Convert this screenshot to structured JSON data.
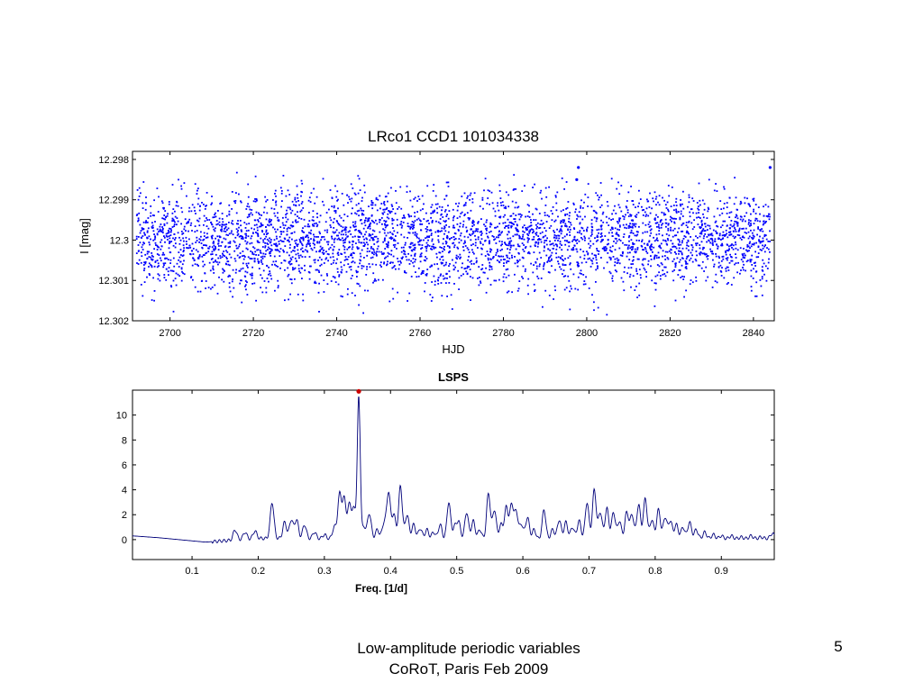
{
  "slide": {
    "footer_line1": "Low-amplitude periodic variables",
    "footer_line2": "CoRoT, Paris Feb 2009",
    "page_number": "5"
  },
  "chart_data": [
    {
      "type": "scatter",
      "title": "LRco1 CCD1  101034338",
      "xlabel": "HJD",
      "ylabel": "I [mag]",
      "xlim": [
        2691,
        2845
      ],
      "ylim": [
        12.302,
        12.2978
      ],
      "y_axis_inverted": true,
      "xticks": [
        2700,
        2720,
        2740,
        2760,
        2780,
        2800,
        2820,
        2840
      ],
      "yticks": [
        12.298,
        12.299,
        12.3,
        12.301,
        12.302
      ],
      "ytick_labels": [
        "12.298",
        "12.299",
        "12.3",
        "12.301",
        "12.302"
      ],
      "marker_color": "#0000ff",
      "series": [
        {
          "x_range": [
            2692,
            2844
          ],
          "approx_points": 4000,
          "mean_mag": 12.3,
          "typical_scatter_mag": 0.0011,
          "brightest_mag": 12.2982,
          "faintest_mag": 12.302,
          "notable": [
            {
              "x": 2798,
              "y": 12.2982
            },
            {
              "x": 2797.6,
              "y": 12.2985
            },
            {
              "x": 2844,
              "y": 12.2982
            }
          ]
        }
      ],
      "grid": false
    },
    {
      "type": "line",
      "title": "LSPS",
      "xlabel": "Freq. [1/d]",
      "ylabel": "",
      "xlim": [
        0.01,
        0.98
      ],
      "ylim": [
        -1.6,
        12.0
      ],
      "xticks": [
        0.1,
        0.2,
        0.3,
        0.4,
        0.5,
        0.6,
        0.7,
        0.8,
        0.9
      ],
      "xtick_labels": [
        "0.1",
        "0.2",
        "0.3",
        "0.4",
        "0.5",
        "0.6",
        "0.7",
        "0.8",
        "0.9"
      ],
      "yticks": [
        0,
        2,
        4,
        6,
        8,
        10
      ],
      "ytick_labels": [
        "0",
        "2",
        "4",
        "6",
        "8",
        "10"
      ],
      "line_color": "#00007a",
      "baseline": [
        {
          "x": 0.01,
          "y": 0.3
        },
        {
          "x": 0.05,
          "y": 0.15
        },
        {
          "x": 0.1,
          "y": -0.1
        },
        {
          "x": 0.12,
          "y": -0.2
        },
        {
          "x": 0.2,
          "y": 0.1
        },
        {
          "x": 0.5,
          "y": 0.0
        },
        {
          "x": 0.98,
          "y": 0.1
        }
      ],
      "peaks": [
        {
          "x": 0.165,
          "y": 0.8
        },
        {
          "x": 0.18,
          "y": 0.6
        },
        {
          "x": 0.195,
          "y": 0.7
        },
        {
          "x": 0.221,
          "y": 3.0
        },
        {
          "x": 0.24,
          "y": 1.4
        },
        {
          "x": 0.25,
          "y": 1.6
        },
        {
          "x": 0.258,
          "y": 1.6
        },
        {
          "x": 0.27,
          "y": 1.2
        },
        {
          "x": 0.285,
          "y": 0.6
        },
        {
          "x": 0.3,
          "y": 0.4
        },
        {
          "x": 0.315,
          "y": 1.0
        },
        {
          "x": 0.323,
          "y": 3.6
        },
        {
          "x": 0.33,
          "y": 3.2
        },
        {
          "x": 0.338,
          "y": 2.8
        },
        {
          "x": 0.345,
          "y": 2.4
        },
        {
          "x": 0.352,
          "y": 11.4
        },
        {
          "x": 0.36,
          "y": 1.0
        },
        {
          "x": 0.368,
          "y": 2.1
        },
        {
          "x": 0.38,
          "y": 0.8
        },
        {
          "x": 0.39,
          "y": 1.3
        },
        {
          "x": 0.397,
          "y": 3.8
        },
        {
          "x": 0.405,
          "y": 2.0
        },
        {
          "x": 0.415,
          "y": 4.3
        },
        {
          "x": 0.425,
          "y": 2.0
        },
        {
          "x": 0.435,
          "y": 1.2
        },
        {
          "x": 0.445,
          "y": 0.9
        },
        {
          "x": 0.455,
          "y": 0.8
        },
        {
          "x": 0.465,
          "y": 0.6
        },
        {
          "x": 0.475,
          "y": 1.2
        },
        {
          "x": 0.488,
          "y": 3.0
        },
        {
          "x": 0.497,
          "y": 1.0
        },
        {
          "x": 0.503,
          "y": 1.4
        },
        {
          "x": 0.515,
          "y": 2.2
        },
        {
          "x": 0.525,
          "y": 1.5
        },
        {
          "x": 0.535,
          "y": 0.8
        },
        {
          "x": 0.548,
          "y": 3.7
        },
        {
          "x": 0.557,
          "y": 2.4
        },
        {
          "x": 0.567,
          "y": 1.2
        },
        {
          "x": 0.575,
          "y": 2.6
        },
        {
          "x": 0.583,
          "y": 2.8
        },
        {
          "x": 0.59,
          "y": 2.2
        },
        {
          "x": 0.598,
          "y": 1.2
        },
        {
          "x": 0.607,
          "y": 1.8
        },
        {
          "x": 0.617,
          "y": 0.8
        },
        {
          "x": 0.632,
          "y": 2.4
        },
        {
          "x": 0.645,
          "y": 0.8
        },
        {
          "x": 0.655,
          "y": 1.6
        },
        {
          "x": 0.665,
          "y": 1.4
        },
        {
          "x": 0.675,
          "y": 1.0
        },
        {
          "x": 0.685,
          "y": 1.5
        },
        {
          "x": 0.697,
          "y": 3.0
        },
        {
          "x": 0.708,
          "y": 4.0
        },
        {
          "x": 0.717,
          "y": 2.2
        },
        {
          "x": 0.727,
          "y": 2.5
        },
        {
          "x": 0.737,
          "y": 2.2
        },
        {
          "x": 0.746,
          "y": 1.5
        },
        {
          "x": 0.757,
          "y": 2.2
        },
        {
          "x": 0.765,
          "y": 2.0
        },
        {
          "x": 0.775,
          "y": 2.8
        },
        {
          "x": 0.785,
          "y": 3.3
        },
        {
          "x": 0.795,
          "y": 1.6
        },
        {
          "x": 0.805,
          "y": 2.4
        },
        {
          "x": 0.815,
          "y": 1.8
        },
        {
          "x": 0.823,
          "y": 1.5
        },
        {
          "x": 0.832,
          "y": 1.2
        },
        {
          "x": 0.842,
          "y": 1.0
        },
        {
          "x": 0.852,
          "y": 1.4
        },
        {
          "x": 0.862,
          "y": 0.8
        },
        {
          "x": 0.875,
          "y": 0.6
        },
        {
          "x": 0.888,
          "y": 0.4
        },
        {
          "x": 0.9,
          "y": 0.3
        },
        {
          "x": 0.915,
          "y": 0.3
        },
        {
          "x": 0.93,
          "y": 0.2
        },
        {
          "x": 0.945,
          "y": 0.3
        },
        {
          "x": 0.96,
          "y": 0.2
        },
        {
          "x": 0.977,
          "y": 0.5
        }
      ],
      "highlight_point": {
        "x": 0.352,
        "y": 11.4,
        "color": "#cc0000"
      },
      "grid": false
    }
  ]
}
